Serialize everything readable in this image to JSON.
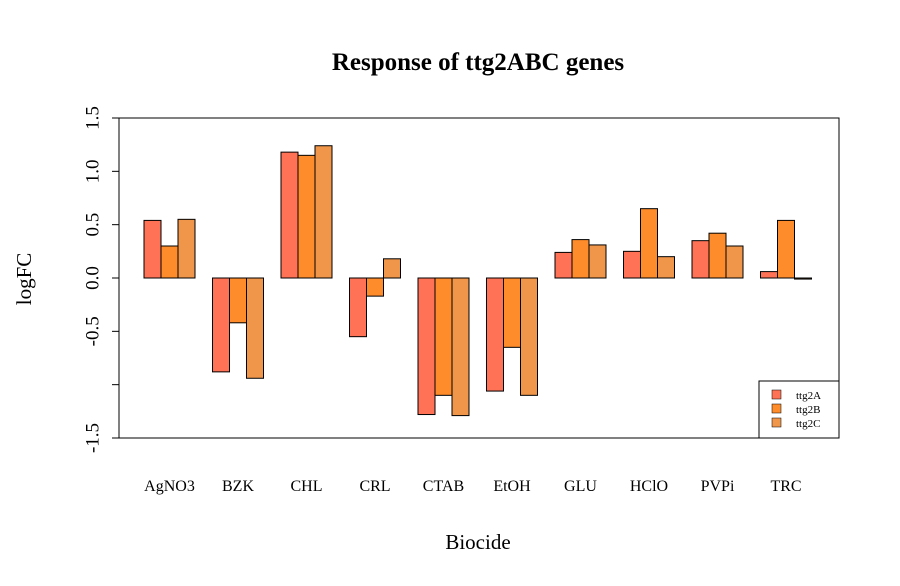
{
  "chart_data": {
    "type": "bar",
    "title": "Response of ttg2ABC genes",
    "xlabel": "Biocide",
    "ylabel": "logFC",
    "ylim": [
      -1.5,
      1.5
    ],
    "yticks": [
      "-1.5",
      "-0.5",
      "0.0",
      "0.5",
      "1.0",
      "1.5"
    ],
    "ytick_values": [
      -1.5,
      -0.5,
      0.0,
      0.5,
      1.0,
      1.5
    ],
    "categories": [
      "AgNO3",
      "BZK",
      "CHL",
      "CRL",
      "CTAB",
      "EtOH",
      "GLU",
      "HClO",
      "PVPi",
      "TRC"
    ],
    "series": [
      {
        "name": "ttg2A",
        "color": "#FF7256",
        "values": [
          0.54,
          -0.88,
          1.18,
          -0.55,
          -1.28,
          -1.06,
          0.24,
          0.25,
          0.35,
          0.06
        ]
      },
      {
        "name": "ttg2B",
        "color": "#FF8C2A",
        "values": [
          0.3,
          -0.42,
          1.15,
          -0.17,
          -1.1,
          -0.65,
          0.36,
          0.65,
          0.42,
          0.54
        ]
      },
      {
        "name": "ttg2C",
        "color": "#F0964A",
        "values": [
          0.55,
          -0.94,
          1.24,
          0.18,
          -1.29,
          -1.1,
          0.31,
          0.2,
          0.3,
          -0.01
        ]
      }
    ],
    "legend_position": "bottom-right",
    "grid": false
  }
}
